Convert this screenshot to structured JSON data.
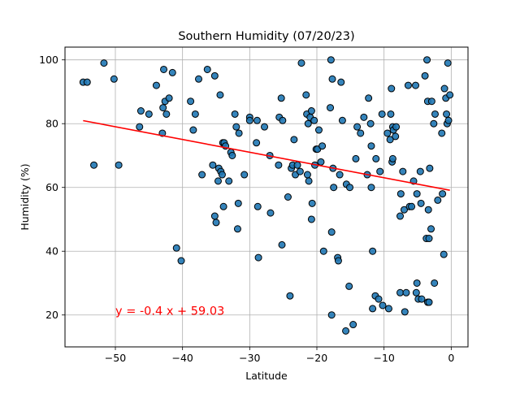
{
  "chart_data": {
    "type": "scatter",
    "title": "Southern Humidity (07/20/23)",
    "xlabel": "Latitude",
    "ylabel": "Humidity (%)",
    "xlim": [
      -57.5,
      2.5
    ],
    "ylim": [
      10,
      104
    ],
    "xticks": [
      -50,
      -40,
      -30,
      -20,
      -10,
      0
    ],
    "yticks": [
      20,
      40,
      60,
      80,
      100
    ],
    "grid": true,
    "colors": {
      "points": "#1f77b4",
      "point_edge": "#000000",
      "regression": "#ff0000",
      "annotation": "#ff0000"
    },
    "regression": {
      "slope": -0.4,
      "intercept": 59.03,
      "x_range": [
        -54.8,
        -0.2
      ]
    },
    "annotation": {
      "text": "y = -0.4 x + 59.03",
      "x": -50,
      "y": 20
    },
    "points": [
      [
        -54.8,
        93
      ],
      [
        -54.2,
        93
      ],
      [
        -53.2,
        67
      ],
      [
        -51.7,
        99
      ],
      [
        -50.2,
        94
      ],
      [
        -49.5,
        67
      ],
      [
        -46.4,
        79
      ],
      [
        -46.2,
        84
      ],
      [
        -45,
        83
      ],
      [
        -43.9,
        92
      ],
      [
        -43,
        77
      ],
      [
        -42.9,
        85
      ],
      [
        -42.8,
        97
      ],
      [
        -42.6,
        87
      ],
      [
        -42.4,
        83
      ],
      [
        -42,
        88
      ],
      [
        -41.5,
        96
      ],
      [
        -40.9,
        41
      ],
      [
        -40.2,
        37
      ],
      [
        -38.8,
        87
      ],
      [
        -38.4,
        78
      ],
      [
        -38.1,
        83
      ],
      [
        -37.6,
        94
      ],
      [
        -37.1,
        64
      ],
      [
        -36.3,
        97
      ],
      [
        -35.5,
        67
      ],
      [
        -35.2,
        51
      ],
      [
        -35.2,
        95
      ],
      [
        -35,
        49
      ],
      [
        -34.7,
        62
      ],
      [
        -34.6,
        66
      ],
      [
        -34.4,
        89
      ],
      [
        -34.3,
        65
      ],
      [
        -34.1,
        64
      ],
      [
        -34,
        74
      ],
      [
        -33.9,
        54
      ],
      [
        -33.8,
        74
      ],
      [
        -33.6,
        73
      ],
      [
        -33.1,
        62
      ],
      [
        -32.8,
        71
      ],
      [
        -32.6,
        70
      ],
      [
        -32.2,
        83
      ],
      [
        -32,
        79
      ],
      [
        -31.8,
        47
      ],
      [
        -31.7,
        55
      ],
      [
        -31.6,
        77
      ],
      [
        -30.8,
        64
      ],
      [
        -30,
        82
      ],
      [
        -30,
        81
      ],
      [
        -29,
        74
      ],
      [
        -28.9,
        81
      ],
      [
        -28.8,
        54
      ],
      [
        -28.7,
        38
      ],
      [
        -27.8,
        79
      ],
      [
        -27,
        70
      ],
      [
        -26.9,
        52
      ],
      [
        -25.7,
        67
      ],
      [
        -25.6,
        82
      ],
      [
        -25.3,
        88
      ],
      [
        -25.2,
        42
      ],
      [
        -25.1,
        81
      ],
      [
        -24.3,
        57
      ],
      [
        -24,
        26
      ],
      [
        -23.8,
        66
      ],
      [
        -23.6,
        67
      ],
      [
        -23.4,
        75
      ],
      [
        -23.2,
        64
      ],
      [
        -22.9,
        67
      ],
      [
        -22.5,
        65
      ],
      [
        -22.3,
        99
      ],
      [
        -21.6,
        89
      ],
      [
        -21.5,
        83
      ],
      [
        -21.4,
        64
      ],
      [
        -21.3,
        80
      ],
      [
        -21.2,
        62
      ],
      [
        -21,
        82
      ],
      [
        -20.8,
        84
      ],
      [
        -20.8,
        50
      ],
      [
        -20.7,
        55
      ],
      [
        -20.4,
        81
      ],
      [
        -20.3,
        67
      ],
      [
        -20.1,
        72
      ],
      [
        -19.9,
        72
      ],
      [
        -19.7,
        78
      ],
      [
        -19.4,
        68
      ],
      [
        -19.2,
        73
      ],
      [
        -19,
        40
      ],
      [
        -18,
        85
      ],
      [
        -17.9,
        100
      ],
      [
        -17.8,
        46
      ],
      [
        -17.8,
        20
      ],
      [
        -17.7,
        94
      ],
      [
        -17.6,
        66
      ],
      [
        -17.5,
        60
      ],
      [
        -16.9,
        38
      ],
      [
        -16.8,
        37
      ],
      [
        -16.6,
        64
      ],
      [
        -16.4,
        93
      ],
      [
        -16.2,
        81
      ],
      [
        -15.7,
        15
      ],
      [
        -15.6,
        61
      ],
      [
        -15.2,
        29
      ],
      [
        -15.1,
        60
      ],
      [
        -14.6,
        17
      ],
      [
        -14.2,
        69
      ],
      [
        -14,
        79
      ],
      [
        -13.5,
        77
      ],
      [
        -13,
        82
      ],
      [
        -12.5,
        64
      ],
      [
        -12.3,
        88
      ],
      [
        -12,
        80
      ],
      [
        -11.9,
        73
      ],
      [
        -11.9,
        60
      ],
      [
        -11.7,
        40
      ],
      [
        -11.7,
        22
      ],
      [
        -11.3,
        26
      ],
      [
        -11.2,
        69
      ],
      [
        -10.8,
        25
      ],
      [
        -10.6,
        65
      ],
      [
        -10.3,
        83
      ],
      [
        -10.2,
        23
      ],
      [
        -9.5,
        77
      ],
      [
        -9.3,
        22
      ],
      [
        -9.1,
        75
      ],
      [
        -9,
        83
      ],
      [
        -8.9,
        91
      ],
      [
        -8.8,
        68
      ],
      [
        -8.7,
        69
      ],
      [
        -8.7,
        79
      ],
      [
        -8.6,
        78
      ],
      [
        -8.3,
        76
      ],
      [
        -8.2,
        79
      ],
      [
        -7.6,
        51
      ],
      [
        -7.6,
        27
      ],
      [
        -7.5,
        58
      ],
      [
        -7.2,
        65
      ],
      [
        -7,
        53
      ],
      [
        -6.9,
        21
      ],
      [
        -6.7,
        27
      ],
      [
        -6.4,
        92
      ],
      [
        -6.2,
        54
      ],
      [
        -5.9,
        54
      ],
      [
        -5.6,
        62
      ],
      [
        -5.3,
        92
      ],
      [
        -5.2,
        27
      ],
      [
        -5.1,
        58
      ],
      [
        -5.1,
        30
      ],
      [
        -4.9,
        25
      ],
      [
        -4.6,
        65
      ],
      [
        -4.5,
        55
      ],
      [
        -4.4,
        25
      ],
      [
        -3.9,
        95
      ],
      [
        -3.7,
        44
      ],
      [
        -3.6,
        100
      ],
      [
        -3.5,
        87
      ],
      [
        -3.5,
        24
      ],
      [
        -3.4,
        53
      ],
      [
        -3.3,
        44
      ],
      [
        -3.3,
        24
      ],
      [
        -3.2,
        66
      ],
      [
        -3,
        47
      ],
      [
        -2.9,
        87
      ],
      [
        -2.6,
        80
      ],
      [
        -2.5,
        30
      ],
      [
        -2.4,
        83
      ],
      [
        -2,
        56
      ],
      [
        -1.4,
        77
      ],
      [
        -1.3,
        58
      ],
      [
        -1.1,
        39
      ],
      [
        -1,
        91
      ],
      [
        -0.8,
        88
      ],
      [
        -0.7,
        83
      ],
      [
        -0.6,
        80
      ],
      [
        -0.5,
        99
      ],
      [
        -0.4,
        81
      ],
      [
        -0.2,
        89
      ]
    ]
  }
}
